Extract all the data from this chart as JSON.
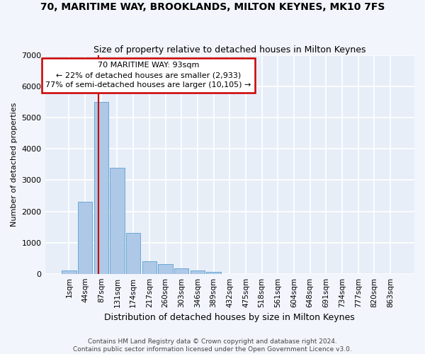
{
  "title": "70, MARITIME WAY, BROOKLANDS, MILTON KEYNES, MK10 7FS",
  "subtitle": "Size of property relative to detached houses in Milton Keynes",
  "xlabel": "Distribution of detached houses by size in Milton Keynes",
  "ylabel": "Number of detached properties",
  "footnote1": "Contains HM Land Registry data © Crown copyright and database right 2024.",
  "footnote2": "Contains public sector information licensed under the Open Government Licence v3.0.",
  "annotation_line1": "70 MARITIME WAY: 93sqm",
  "annotation_line2": "← 22% of detached houses are smaller (2,933)",
  "annotation_line3": "77% of semi-detached houses are larger (10,105) →",
  "bar_labels": [
    "1sqm",
    "44sqm",
    "87sqm",
    "131sqm",
    "174sqm",
    "217sqm",
    "260sqm",
    "303sqm",
    "346sqm",
    "389sqm",
    "432sqm",
    "475sqm",
    "518sqm",
    "561sqm",
    "604sqm",
    "648sqm",
    "691sqm",
    "734sqm",
    "777sqm",
    "820sqm",
    "863sqm"
  ],
  "bar_values": [
    100,
    2300,
    5500,
    3400,
    1300,
    400,
    300,
    175,
    100,
    50,
    0,
    0,
    0,
    0,
    0,
    0,
    0,
    0,
    0,
    0,
    0
  ],
  "bar_color": "#aec8e8",
  "bar_edge_color": "#6aaad4",
  "red_line_x": 1.85,
  "ylim": [
    0,
    7000
  ],
  "yticks": [
    0,
    1000,
    2000,
    3000,
    4000,
    5000,
    6000,
    7000
  ],
  "fig_bg_color": "#f2f5fb",
  "axes_bg_color": "#e8eef8",
  "grid_color": "#ffffff",
  "annotation_box_facecolor": "#ffffff",
  "annotation_border_color": "#cc0000",
  "red_line_color": "#cc0000",
  "title_fontsize": 10,
  "subtitle_fontsize": 9,
  "ylabel_fontsize": 8,
  "xlabel_fontsize": 9,
  "tick_fontsize": 8,
  "xtick_fontsize": 7.5,
  "annot_fontsize": 8,
  "footer_fontsize": 6.5
}
